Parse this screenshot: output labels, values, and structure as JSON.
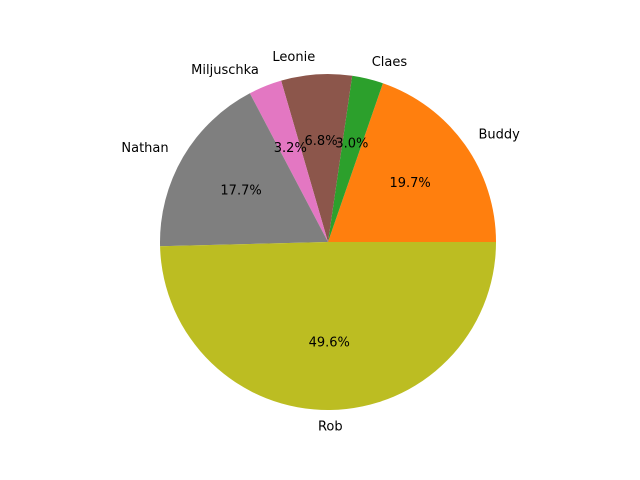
{
  "chart_data": {
    "type": "pie",
    "labels": [
      "Buddy",
      "Claes",
      "Leonie",
      "Miljuschka",
      "Nathan",
      "Rob"
    ],
    "values": [
      19.7,
      3.0,
      6.8,
      3.2,
      17.7,
      49.6
    ],
    "percent_labels": [
      "19.7%",
      "3.0%",
      "6.8%",
      "3.2%",
      "17.7%",
      "49.6%"
    ],
    "colors": [
      "#ff7f0e",
      "#2ca02c",
      "#8c564b",
      "#e377c2",
      "#7f7f7f",
      "#bcbd22"
    ],
    "start_angle_deg": 0,
    "direction": "counterclockwise",
    "title": "",
    "legend": "none"
  }
}
